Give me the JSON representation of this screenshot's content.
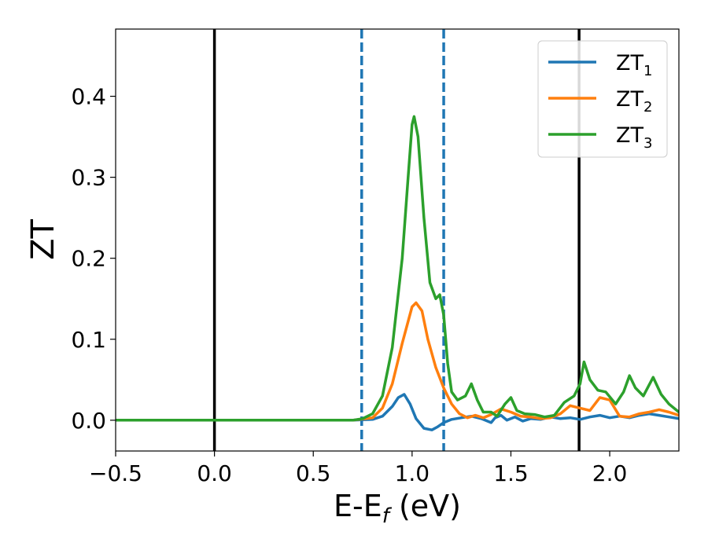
{
  "chart_data": {
    "type": "line",
    "xlabel": {
      "base": "E-E",
      "sub": "f",
      "tail": " (eV)"
    },
    "ylabel": "ZT",
    "xlim": [
      -0.5,
      2.35
    ],
    "ylim": [
      -0.038,
      0.483
    ],
    "x_ticks": [
      -0.5,
      0.0,
      0.5,
      1.0,
      1.5,
      2.0
    ],
    "x_tick_labels": [
      "−0.5",
      "0.0",
      "0.5",
      "1.0",
      "1.5",
      "2.0"
    ],
    "y_ticks": [
      0.0,
      0.1,
      0.2,
      0.3,
      0.4
    ],
    "y_tick_labels": [
      "0.0",
      "0.1",
      "0.2",
      "0.3",
      "0.4"
    ],
    "grid": false,
    "legend_position": "top-right",
    "vlines": [
      {
        "x": 0.0,
        "style": "solid",
        "color": "#000000"
      },
      {
        "x": 0.745,
        "style": "dashed",
        "color": "#1f77b4"
      },
      {
        "x": 1.16,
        "style": "dashed",
        "color": "#1f77b4"
      },
      {
        "x": 1.845,
        "style": "solid",
        "color": "#000000"
      }
    ],
    "series": [
      {
        "name": "ZT",
        "sub": "1",
        "color": "#1f77b4",
        "points": [
          [
            -0.5,
            0
          ],
          [
            0.7,
            0
          ],
          [
            0.8,
            0.001
          ],
          [
            0.85,
            0.005
          ],
          [
            0.9,
            0.017
          ],
          [
            0.93,
            0.028
          ],
          [
            0.96,
            0.032
          ],
          [
            0.99,
            0.02
          ],
          [
            1.02,
            0.002
          ],
          [
            1.06,
            -0.01
          ],
          [
            1.1,
            -0.012
          ],
          [
            1.13,
            -0.008
          ],
          [
            1.16,
            -0.003
          ],
          [
            1.2,
            0.001
          ],
          [
            1.25,
            0.003
          ],
          [
            1.3,
            0.005
          ],
          [
            1.35,
            0.002
          ],
          [
            1.4,
            -0.003
          ],
          [
            1.42,
            0.003
          ],
          [
            1.45,
            0.006
          ],
          [
            1.48,
            0.0
          ],
          [
            1.52,
            0.004
          ],
          [
            1.56,
            -0.001
          ],
          [
            1.6,
            0.002
          ],
          [
            1.65,
            0.001
          ],
          [
            1.7,
            0.004
          ],
          [
            1.75,
            0.002
          ],
          [
            1.8,
            0.003
          ],
          [
            1.85,
            0.001
          ],
          [
            1.9,
            0.004
          ],
          [
            1.95,
            0.006
          ],
          [
            2.0,
            0.003
          ],
          [
            2.05,
            0.005
          ],
          [
            2.1,
            0.003
          ],
          [
            2.15,
            0.006
          ],
          [
            2.2,
            0.008
          ],
          [
            2.25,
            0.006
          ],
          [
            2.3,
            0.004
          ],
          [
            2.35,
            0.002
          ]
        ]
      },
      {
        "name": "ZT",
        "sub": "2",
        "color": "#ff7f0e",
        "points": [
          [
            -0.5,
            0
          ],
          [
            0.7,
            0
          ],
          [
            0.8,
            0.003
          ],
          [
            0.85,
            0.015
          ],
          [
            0.9,
            0.045
          ],
          [
            0.95,
            0.095
          ],
          [
            1.0,
            0.14
          ],
          [
            1.02,
            0.145
          ],
          [
            1.05,
            0.135
          ],
          [
            1.08,
            0.1
          ],
          [
            1.12,
            0.065
          ],
          [
            1.16,
            0.04
          ],
          [
            1.2,
            0.02
          ],
          [
            1.24,
            0.008
          ],
          [
            1.28,
            0.003
          ],
          [
            1.32,
            0.006
          ],
          [
            1.36,
            0.003
          ],
          [
            1.4,
            0.007
          ],
          [
            1.45,
            0.014
          ],
          [
            1.5,
            0.01
          ],
          [
            1.55,
            0.005
          ],
          [
            1.6,
            0.004
          ],
          [
            1.65,
            0.002
          ],
          [
            1.7,
            0.003
          ],
          [
            1.75,
            0.008
          ],
          [
            1.8,
            0.018
          ],
          [
            1.85,
            0.015
          ],
          [
            1.9,
            0.012
          ],
          [
            1.95,
            0.028
          ],
          [
            2.0,
            0.025
          ],
          [
            2.05,
            0.005
          ],
          [
            2.1,
            0.004
          ],
          [
            2.15,
            0.008
          ],
          [
            2.2,
            0.01
          ],
          [
            2.25,
            0.013
          ],
          [
            2.3,
            0.01
          ],
          [
            2.35,
            0.006
          ]
        ]
      },
      {
        "name": "ZT",
        "sub": "3",
        "color": "#2ca02c",
        "points": [
          [
            -0.5,
            0
          ],
          [
            0.7,
            0
          ],
          [
            0.75,
            0.002
          ],
          [
            0.8,
            0.008
          ],
          [
            0.85,
            0.03
          ],
          [
            0.9,
            0.09
          ],
          [
            0.95,
            0.2
          ],
          [
            0.98,
            0.3
          ],
          [
            1.0,
            0.365
          ],
          [
            1.01,
            0.375
          ],
          [
            1.03,
            0.35
          ],
          [
            1.06,
            0.25
          ],
          [
            1.09,
            0.17
          ],
          [
            1.12,
            0.15
          ],
          [
            1.14,
            0.155
          ],
          [
            1.16,
            0.13
          ],
          [
            1.18,
            0.07
          ],
          [
            1.2,
            0.035
          ],
          [
            1.23,
            0.025
          ],
          [
            1.27,
            0.03
          ],
          [
            1.3,
            0.045
          ],
          [
            1.33,
            0.025
          ],
          [
            1.36,
            0.01
          ],
          [
            1.4,
            0.01
          ],
          [
            1.43,
            0.005
          ],
          [
            1.47,
            0.02
          ],
          [
            1.5,
            0.028
          ],
          [
            1.53,
            0.012
          ],
          [
            1.57,
            0.008
          ],
          [
            1.62,
            0.007
          ],
          [
            1.67,
            0.004
          ],
          [
            1.72,
            0.006
          ],
          [
            1.77,
            0.022
          ],
          [
            1.82,
            0.03
          ],
          [
            1.85,
            0.045
          ],
          [
            1.87,
            0.072
          ],
          [
            1.9,
            0.05
          ],
          [
            1.94,
            0.037
          ],
          [
            1.98,
            0.035
          ],
          [
            2.03,
            0.02
          ],
          [
            2.07,
            0.035
          ],
          [
            2.1,
            0.055
          ],
          [
            2.13,
            0.04
          ],
          [
            2.17,
            0.03
          ],
          [
            2.22,
            0.053
          ],
          [
            2.26,
            0.032
          ],
          [
            2.3,
            0.02
          ],
          [
            2.35,
            0.01
          ]
        ]
      }
    ]
  }
}
